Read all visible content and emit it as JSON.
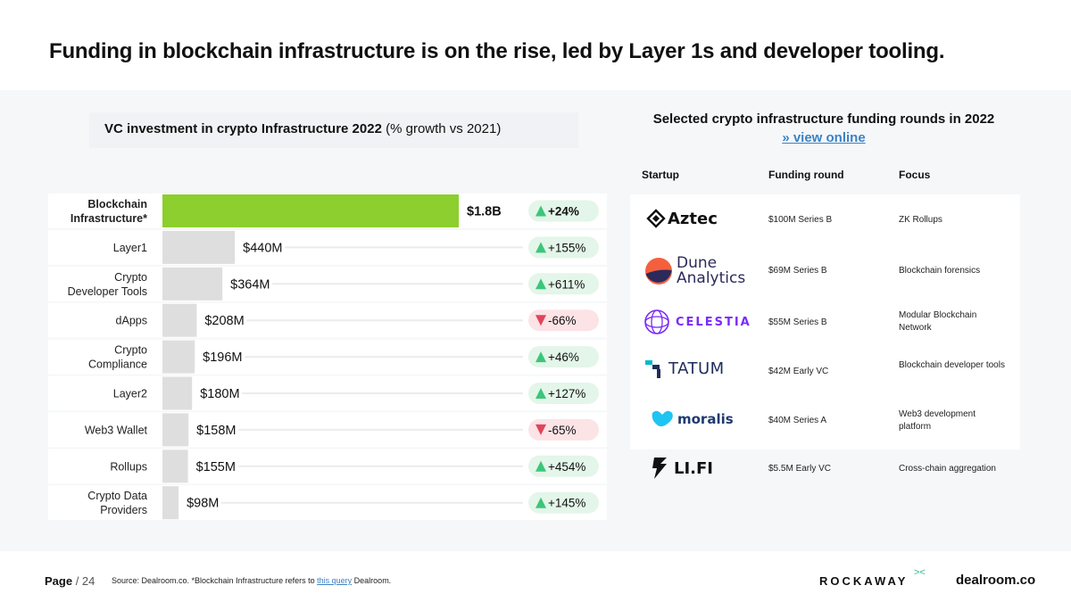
{
  "headline": "Funding in blockchain infrastructure is on the rise, led by Layer 1s and developer tooling.",
  "chart_data": {
    "type": "bar",
    "orientation": "horizontal",
    "title": "VC investment in crypto Infrastructure 2022",
    "subtitle": "(% growth vs 2021)",
    "unit": "$M",
    "categories": [
      "Blockchain Infrastructure*",
      "Layer1",
      "Crypto Developer Tools",
      "dApps",
      "Crypto Compliance",
      "Layer2",
      "Web3 Wallet",
      "Rollups",
      "Crypto Data Providers"
    ],
    "category_lines": [
      [
        "Blockchain",
        "Infrastructure*"
      ],
      [
        "Layer1"
      ],
      [
        "Crypto",
        "Developer Tools"
      ],
      [
        "dApps"
      ],
      [
        "Crypto",
        "Compliance"
      ],
      [
        "Layer2"
      ],
      [
        "Web3 Wallet"
      ],
      [
        "Rollups"
      ],
      [
        "Crypto Data",
        "Providers"
      ]
    ],
    "values": [
      1800,
      440,
      364,
      208,
      196,
      180,
      158,
      155,
      98
    ],
    "value_labels": [
      "$1.8B",
      "$440M",
      "$364M",
      "$208M",
      "$196M",
      "$180M",
      "$158M",
      "$155M",
      "$98M"
    ],
    "growth": [
      "+24%",
      "+155%",
      "+611%",
      "-66%",
      "+46%",
      "+127%",
      "-65%",
      "+454%",
      "+145%"
    ],
    "growth_direction": [
      "up",
      "up",
      "up",
      "down",
      "up",
      "up",
      "down",
      "up",
      "up"
    ],
    "xlim": [
      0,
      1800
    ],
    "highlight_color": "#8ccf2e",
    "bar_color": "#dedede",
    "up_color": "#3cc67a",
    "down_color": "#e0455a"
  },
  "rounds": {
    "title": "Selected crypto infrastructure funding rounds in 2022",
    "link": "» view online",
    "columns": [
      "Startup",
      "Funding round",
      "Focus"
    ],
    "rows": [
      {
        "startup": "Aztec",
        "round": "$100M Series B",
        "focus": "ZK Rollups"
      },
      {
        "startup": "Dune Analytics",
        "startup_lines": [
          "Dune",
          "Analytics"
        ],
        "round": "$69M Series B",
        "focus": "Blockchain forensics"
      },
      {
        "startup": "CELESTIA",
        "round": "$55M Series B",
        "focus": "Modular Blockchain Network"
      },
      {
        "startup": "TATUM",
        "round": "$42M Early VC",
        "focus": "Blockchain developer tools"
      },
      {
        "startup": "moralis",
        "round": "$40M Series A",
        "focus": "Web3 development platform"
      },
      {
        "startup": "LI.FI",
        "round": "$5.5M Early VC",
        "focus": "Cross-chain aggregation"
      }
    ]
  },
  "footer": {
    "page_label": "Page",
    "page_number": "/ 24",
    "source_prefix": "Source: Dealroom.co.  *Blockchain Infrastructure refers to",
    "source_link": "this query",
    "source_suffix": "Dealroom.",
    "brand_rockaway": "ROCKAWAY",
    "brand_rockaway_mark": "><",
    "brand_dealroom": "dealroom.co"
  }
}
